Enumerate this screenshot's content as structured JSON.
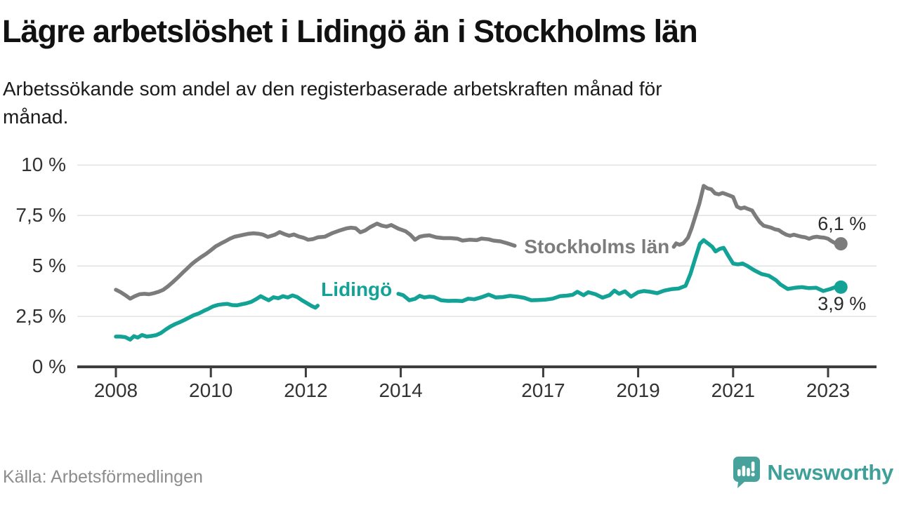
{
  "header": {
    "title": "Lägre arbetslöshet i Lidingö än i Stockholms län",
    "subtitle_lines": [
      "Arbetssökande som andel av den registerbaserade arbetskraften månad för",
      "månad."
    ]
  },
  "footer": {
    "source": "Källa: Arbetsförmedlingen",
    "brand": "Newsworthy",
    "brand_color": "#3fa099",
    "brand_icon": "speech-bubble-bar-chart"
  },
  "chart_data": {
    "type": "line",
    "title": "Lägre arbetslöshet i Lidingö än i Stockholms län",
    "subtitle": "Arbetssökande som andel av den registerbaserade arbetskraften månad för månad.",
    "xlabel": "",
    "ylabel": "",
    "ylim": [
      0,
      10
    ],
    "xlim": [
      2007.2,
      2024.0
    ],
    "grid": "horizontal",
    "unit": "%",
    "y_ticks": [
      {
        "value": 0,
        "label": "0 %"
      },
      {
        "value": 2.5,
        "label": "2,5 %"
      },
      {
        "value": 5,
        "label": "5 %"
      },
      {
        "value": 7.5,
        "label": "7,5 %"
      },
      {
        "value": 10,
        "label": "10 %"
      }
    ],
    "x_ticks": [
      {
        "year": 2008,
        "label": "2008"
      },
      {
        "year": 2010,
        "label": "2010"
      },
      {
        "year": 2012,
        "label": "2012"
      },
      {
        "year": 2014,
        "label": "2014"
      },
      {
        "year": 2017,
        "label": "2017"
      },
      {
        "year": 2019,
        "label": "2019"
      },
      {
        "year": 2021,
        "label": "2021"
      },
      {
        "year": 2023,
        "label": "2023"
      }
    ],
    "axis_color": "#3d3d3d",
    "gridline_color": "#e2e2e2",
    "series": [
      {
        "name": "Stockholms län",
        "color": "#7c7c7c",
        "end_label": "6,1 %",
        "end_label_position": "above",
        "inline_label": {
          "text": "Stockholms län",
          "year": 2018.13,
          "value": 5.95
        },
        "segments": [
          [
            [
              2008.0,
              3.82
            ],
            [
              2008.1,
              3.7
            ],
            [
              2008.2,
              3.55
            ],
            [
              2008.3,
              3.38
            ],
            [
              2008.4,
              3.5
            ],
            [
              2008.5,
              3.6
            ],
            [
              2008.6,
              3.62
            ],
            [
              2008.7,
              3.6
            ],
            [
              2008.8,
              3.65
            ],
            [
              2008.9,
              3.72
            ],
            [
              2009.0,
              3.82
            ],
            [
              2009.1,
              4.0
            ],
            [
              2009.2,
              4.2
            ],
            [
              2009.3,
              4.42
            ],
            [
              2009.4,
              4.65
            ],
            [
              2009.5,
              4.87
            ],
            [
              2009.6,
              5.1
            ],
            [
              2009.7,
              5.28
            ],
            [
              2009.8,
              5.45
            ],
            [
              2009.9,
              5.6
            ],
            [
              2010.0,
              5.78
            ],
            [
              2010.1,
              5.97
            ],
            [
              2010.2,
              6.1
            ],
            [
              2010.3,
              6.22
            ],
            [
              2010.4,
              6.35
            ],
            [
              2010.5,
              6.45
            ],
            [
              2010.6,
              6.5
            ],
            [
              2010.7,
              6.55
            ],
            [
              2010.8,
              6.6
            ],
            [
              2010.9,
              6.62
            ],
            [
              2011.0,
              6.6
            ],
            [
              2011.1,
              6.55
            ],
            [
              2011.2,
              6.44
            ],
            [
              2011.35,
              6.55
            ],
            [
              2011.45,
              6.68
            ],
            [
              2011.55,
              6.58
            ],
            [
              2011.65,
              6.5
            ],
            [
              2011.75,
              6.56
            ],
            [
              2011.85,
              6.46
            ],
            [
              2011.95,
              6.4
            ],
            [
              2012.05,
              6.3
            ],
            [
              2012.15,
              6.33
            ],
            [
              2012.25,
              6.42
            ],
            [
              2012.4,
              6.45
            ],
            [
              2012.55,
              6.62
            ],
            [
              2012.7,
              6.75
            ],
            [
              2012.85,
              6.86
            ],
            [
              2012.95,
              6.9
            ],
            [
              2013.05,
              6.87
            ],
            [
              2013.15,
              6.67
            ],
            [
              2013.25,
              6.76
            ],
            [
              2013.35,
              6.92
            ],
            [
              2013.5,
              7.1
            ],
            [
              2013.6,
              7.0
            ],
            [
              2013.7,
              6.95
            ],
            [
              2013.8,
              7.03
            ],
            [
              2013.95,
              6.85
            ],
            [
              2014.1,
              6.72
            ],
            [
              2014.2,
              6.55
            ],
            [
              2014.3,
              6.3
            ],
            [
              2014.4,
              6.45
            ],
            [
              2014.5,
              6.5
            ],
            [
              2014.6,
              6.52
            ],
            [
              2014.75,
              6.42
            ],
            [
              2014.9,
              6.38
            ],
            [
              2015.05,
              6.38
            ],
            [
              2015.2,
              6.35
            ],
            [
              2015.3,
              6.26
            ],
            [
              2015.45,
              6.3
            ],
            [
              2015.6,
              6.28
            ],
            [
              2015.7,
              6.36
            ],
            [
              2015.85,
              6.32
            ],
            [
              2015.95,
              6.26
            ],
            [
              2016.1,
              6.22
            ],
            [
              2016.25,
              6.12
            ],
            [
              2016.4,
              6.0
            ]
          ],
          [
            [
              2019.75,
              5.95
            ],
            [
              2019.8,
              6.12
            ],
            [
              2019.87,
              6.05
            ],
            [
              2019.95,
              6.12
            ],
            [
              2020.05,
              6.4
            ],
            [
              2020.13,
              6.9
            ],
            [
              2020.21,
              7.5
            ],
            [
              2020.29,
              8.1
            ],
            [
              2020.38,
              8.97
            ],
            [
              2020.46,
              8.85
            ],
            [
              2020.54,
              8.8
            ],
            [
              2020.62,
              8.6
            ],
            [
              2020.7,
              8.55
            ],
            [
              2020.78,
              8.62
            ],
            [
              2020.86,
              8.55
            ],
            [
              2020.94,
              8.48
            ],
            [
              2021.0,
              8.42
            ],
            [
              2021.08,
              7.95
            ],
            [
              2021.16,
              7.85
            ],
            [
              2021.24,
              7.9
            ],
            [
              2021.32,
              7.82
            ],
            [
              2021.4,
              7.75
            ],
            [
              2021.48,
              7.45
            ],
            [
              2021.56,
              7.18
            ],
            [
              2021.64,
              7.0
            ],
            [
              2021.72,
              6.95
            ],
            [
              2021.8,
              6.9
            ],
            [
              2021.88,
              6.82
            ],
            [
              2021.96,
              6.78
            ],
            [
              2022.04,
              6.65
            ],
            [
              2022.12,
              6.55
            ],
            [
              2022.2,
              6.5
            ],
            [
              2022.28,
              6.55
            ],
            [
              2022.36,
              6.5
            ],
            [
              2022.44,
              6.45
            ],
            [
              2022.52,
              6.42
            ],
            [
              2022.6,
              6.35
            ],
            [
              2022.68,
              6.42
            ],
            [
              2022.76,
              6.45
            ],
            [
              2022.84,
              6.42
            ],
            [
              2022.92,
              6.4
            ],
            [
              2023.0,
              6.35
            ],
            [
              2023.08,
              6.22
            ],
            [
              2023.16,
              6.12
            ],
            [
              2023.27,
              6.1
            ]
          ]
        ]
      },
      {
        "name": "Lidingö",
        "color": "#12a296",
        "end_label": "3,9 %",
        "end_label_position": "below",
        "inline_label": {
          "text": "Lidingö",
          "year": 2013.07,
          "value": 3.82
        },
        "segments": [
          [
            [
              2008.0,
              1.5
            ],
            [
              2008.1,
              1.5
            ],
            [
              2008.2,
              1.47
            ],
            [
              2008.3,
              1.35
            ],
            [
              2008.38,
              1.52
            ],
            [
              2008.46,
              1.45
            ],
            [
              2008.55,
              1.58
            ],
            [
              2008.65,
              1.5
            ],
            [
              2008.75,
              1.53
            ],
            [
              2008.85,
              1.57
            ],
            [
              2008.95,
              1.68
            ],
            [
              2009.05,
              1.85
            ],
            [
              2009.15,
              2.0
            ],
            [
              2009.25,
              2.12
            ],
            [
              2009.35,
              2.22
            ],
            [
              2009.45,
              2.33
            ],
            [
              2009.55,
              2.45
            ],
            [
              2009.65,
              2.57
            ],
            [
              2009.75,
              2.65
            ],
            [
              2009.85,
              2.77
            ],
            [
              2009.95,
              2.88
            ],
            [
              2010.05,
              3.0
            ],
            [
              2010.15,
              3.07
            ],
            [
              2010.25,
              3.1
            ],
            [
              2010.35,
              3.12
            ],
            [
              2010.45,
              3.06
            ],
            [
              2010.55,
              3.05
            ],
            [
              2010.65,
              3.1
            ],
            [
              2010.75,
              3.15
            ],
            [
              2010.85,
              3.22
            ],
            [
              2010.95,
              3.35
            ],
            [
              2011.05,
              3.5
            ],
            [
              2011.15,
              3.38
            ],
            [
              2011.22,
              3.3
            ],
            [
              2011.32,
              3.45
            ],
            [
              2011.42,
              3.4
            ],
            [
              2011.52,
              3.5
            ],
            [
              2011.62,
              3.44
            ],
            [
              2011.72,
              3.54
            ],
            [
              2011.82,
              3.46
            ],
            [
              2011.92,
              3.3
            ],
            [
              2012.02,
              3.16
            ],
            [
              2012.12,
              3.02
            ],
            [
              2012.2,
              2.93
            ],
            [
              2012.25,
              3.03
            ]
          ],
          [
            [
              2013.95,
              3.62
            ],
            [
              2014.05,
              3.55
            ],
            [
              2014.18,
              3.3
            ],
            [
              2014.3,
              3.37
            ],
            [
              2014.4,
              3.52
            ],
            [
              2014.5,
              3.44
            ],
            [
              2014.6,
              3.48
            ],
            [
              2014.7,
              3.46
            ],
            [
              2014.85,
              3.3
            ],
            [
              2015.0,
              3.27
            ],
            [
              2015.15,
              3.28
            ],
            [
              2015.3,
              3.26
            ],
            [
              2015.42,
              3.38
            ],
            [
              2015.55,
              3.35
            ],
            [
              2015.7,
              3.45
            ],
            [
              2015.85,
              3.58
            ],
            [
              2016.0,
              3.44
            ],
            [
              2016.15,
              3.46
            ],
            [
              2016.3,
              3.52
            ],
            [
              2016.45,
              3.48
            ],
            [
              2016.6,
              3.42
            ],
            [
              2016.75,
              3.3
            ],
            [
              2016.9,
              3.31
            ],
            [
              2017.05,
              3.33
            ],
            [
              2017.2,
              3.38
            ],
            [
              2017.35,
              3.5
            ],
            [
              2017.5,
              3.53
            ],
            [
              2017.62,
              3.57
            ],
            [
              2017.72,
              3.72
            ],
            [
              2017.85,
              3.55
            ],
            [
              2017.95,
              3.7
            ],
            [
              2018.1,
              3.6
            ],
            [
              2018.25,
              3.43
            ],
            [
              2018.4,
              3.55
            ],
            [
              2018.5,
              3.78
            ],
            [
              2018.6,
              3.62
            ],
            [
              2018.72,
              3.74
            ],
            [
              2018.85,
              3.48
            ],
            [
              2019.0,
              3.7
            ],
            [
              2019.12,
              3.76
            ],
            [
              2019.25,
              3.72
            ],
            [
              2019.4,
              3.65
            ],
            [
              2019.55,
              3.78
            ],
            [
              2019.7,
              3.85
            ],
            [
              2019.85,
              3.88
            ],
            [
              2020.0,
              4.02
            ],
            [
              2020.1,
              4.6
            ],
            [
              2020.2,
              5.35
            ],
            [
              2020.3,
              6.1
            ],
            [
              2020.38,
              6.28
            ],
            [
              2020.48,
              6.1
            ],
            [
              2020.56,
              5.95
            ],
            [
              2020.63,
              5.72
            ],
            [
              2020.72,
              5.85
            ],
            [
              2020.8,
              5.9
            ],
            [
              2020.9,
              5.5
            ],
            [
              2021.0,
              5.12
            ],
            [
              2021.1,
              5.08
            ],
            [
              2021.2,
              5.12
            ],
            [
              2021.3,
              5.0
            ],
            [
              2021.45,
              4.78
            ],
            [
              2021.6,
              4.6
            ],
            [
              2021.75,
              4.52
            ],
            [
              2021.9,
              4.3
            ],
            [
              2022.0,
              4.08
            ],
            [
              2022.15,
              3.86
            ],
            [
              2022.3,
              3.92
            ],
            [
              2022.45,
              3.95
            ],
            [
              2022.6,
              3.9
            ],
            [
              2022.75,
              3.92
            ],
            [
              2022.9,
              3.76
            ],
            [
              2023.05,
              3.86
            ],
            [
              2023.15,
              3.95
            ],
            [
              2023.27,
              3.95
            ]
          ]
        ]
      }
    ]
  }
}
